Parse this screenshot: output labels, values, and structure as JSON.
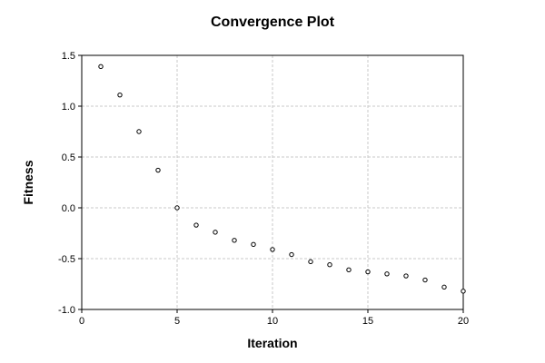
{
  "chart_data": {
    "type": "scatter",
    "title": "Convergence Plot",
    "xlabel": "Iteration",
    "ylabel": "Fitness",
    "xlim": [
      0,
      20
    ],
    "ylim": [
      -1.0,
      1.5
    ],
    "x_ticks": [
      0,
      5,
      10,
      15,
      20
    ],
    "x_tick_labels": [
      "0",
      "5",
      "10",
      "15",
      "20"
    ],
    "y_ticks": [
      1.5,
      1.0,
      0.5,
      0.0,
      -0.5,
      -1.0
    ],
    "y_tick_labels": [
      "1.5",
      "1.0",
      "0.5",
      "0.0",
      "-0.5",
      "-1.0"
    ],
    "grid": true,
    "marker": "open-circle",
    "series": [
      {
        "x": [
          1,
          2,
          3,
          4,
          5,
          6,
          7,
          8,
          9,
          10,
          11,
          12,
          13,
          14,
          15,
          16,
          17,
          18,
          19,
          20
        ],
        "y": [
          1.39,
          1.11,
          0.75,
          0.37,
          0.0,
          -0.17,
          -0.24,
          -0.32,
          -0.36,
          -0.41,
          -0.46,
          -0.53,
          -0.56,
          -0.61,
          -0.63,
          -0.65,
          -0.67,
          -0.71,
          -0.78,
          -0.82
        ]
      }
    ],
    "colors": {
      "marker_stroke": "#000000",
      "marker_fill": "#ffffff",
      "grid": "#c8c8c8",
      "frame": "#000000",
      "background": "#ffffff"
    }
  }
}
